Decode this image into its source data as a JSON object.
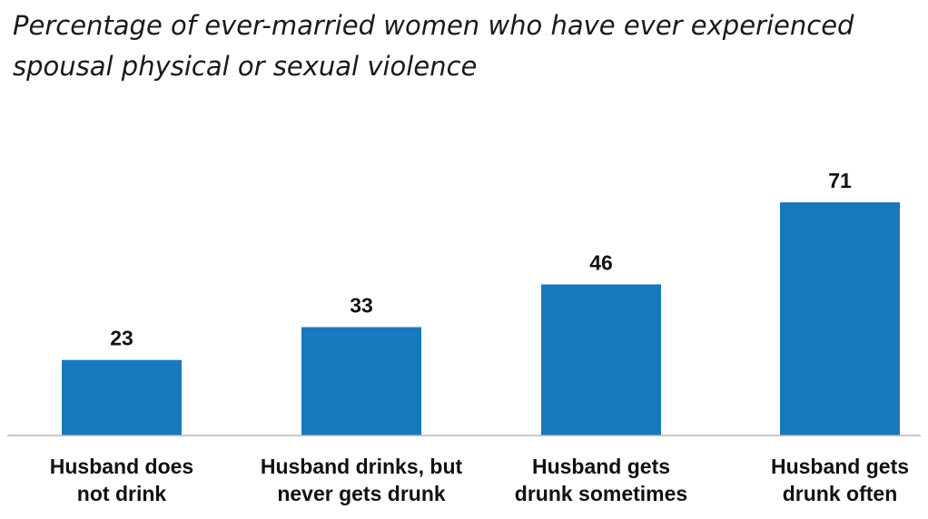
{
  "chart_data": {
    "type": "bar",
    "title_lines": [
      "Percentage of ever-married women who have ever experienced",
      "spousal physical or sexual violence"
    ],
    "categories": [
      [
        "Husband does",
        "not drink"
      ],
      [
        "Husband drinks, but",
        "never gets drunk"
      ],
      [
        "Husband gets",
        "drunk sometimes"
      ],
      [
        "Husband gets",
        "drunk often"
      ]
    ],
    "values": [
      23,
      33,
      46,
      71
    ],
    "data_labels": [
      "23",
      "33",
      "46",
      "71"
    ],
    "ylim": [
      0,
      100
    ],
    "grid": false,
    "legend": "none",
    "bar_color": "#1878be",
    "axis_color": "#b5b5b5"
  }
}
